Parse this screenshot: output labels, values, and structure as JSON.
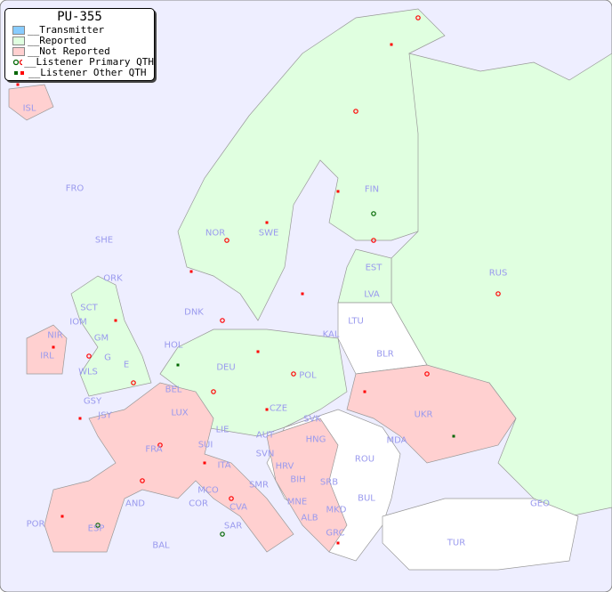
{
  "title": "PU-355",
  "legend": [
    {
      "label": "__Transmitter",
      "color": "#88ccff"
    },
    {
      "label": "__Reported",
      "color": "#e0ffe0"
    },
    {
      "label": "__Not Reported",
      "color": "#ffd0d0"
    },
    {
      "label": "__Listener Primary QTH",
      "icon": "open-circle"
    },
    {
      "label": "__Listener Other QTH",
      "icon": "filled-square"
    }
  ],
  "colors": {
    "sea": "#eeeeff",
    "reported": "#e0ffe0",
    "not_reported": "#ffd0d0",
    "none": "#ffffff",
    "primary_reported": "#006600",
    "primary": "#ff0000"
  },
  "countries": [
    "ISL",
    "FRO",
    "SHE",
    "ORK",
    "NOR",
    "SWE",
    "FIN",
    "RUS",
    "EST",
    "LVA",
    "LTU",
    "KAL",
    "BLR",
    "DNK",
    "HOL",
    "DEU",
    "POL",
    "IRL",
    "IOM",
    "WLS",
    "GSY",
    "JSY",
    "BEL",
    "LUX",
    "CZE",
    "SVK",
    "UKR",
    "MDA",
    "FRA",
    "SUI",
    "LIE",
    "AUT",
    "HNG",
    "SVN",
    "HRV",
    "ROU",
    "ITA",
    "BIH",
    "SRB",
    "BUL",
    "MCO",
    "COR",
    "CVA",
    "SMR",
    "MNE",
    "ALB",
    "MKD",
    "GEO",
    "AND",
    "POR",
    "ESP",
    "BAL",
    "SAR",
    "GRC",
    "TUR",
    "G",
    "E",
    "GM",
    "SCT",
    "NIR"
  ]
}
